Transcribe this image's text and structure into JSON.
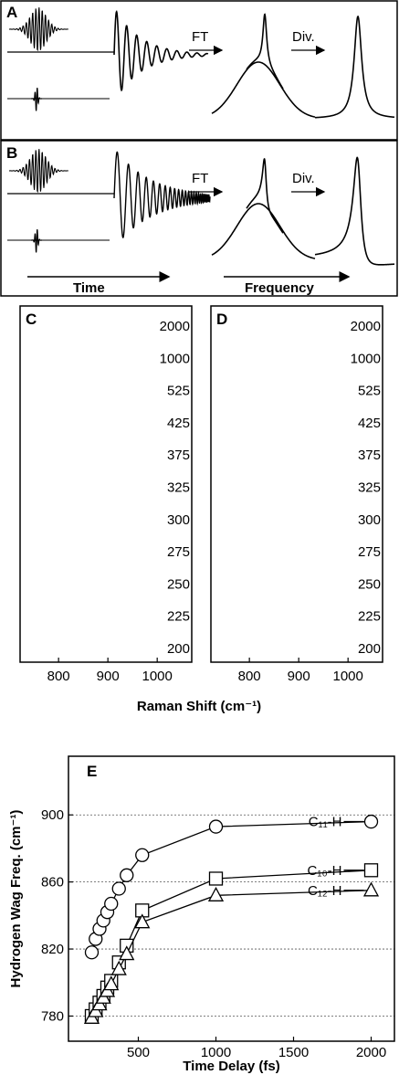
{
  "panels": {
    "A": {
      "label": "A",
      "ft": "FT",
      "div": "Div."
    },
    "B": {
      "label": "B",
      "ft": "FT",
      "div": "Div.",
      "time": "Time",
      "frequency": "Frequency"
    }
  },
  "chart_data": [
    {
      "type": "spectra",
      "panel_label": "C",
      "noisy": true,
      "categories": [
        "2000",
        "1000",
        "525",
        "425",
        "375",
        "325",
        "300",
        "275",
        "250",
        "225",
        "200"
      ],
      "xlim": [
        722,
        1070
      ],
      "xticks": [
        800,
        900,
        1000
      ],
      "xlabel": "Raman Shift (cm⁻¹)"
    },
    {
      "type": "spectra",
      "panel_label": "D",
      "noisy": false,
      "categories": [
        "2000",
        "1000",
        "525",
        "425",
        "375",
        "325",
        "300",
        "275",
        "250",
        "225",
        "200"
      ],
      "xlim": [
        722,
        1070
      ],
      "xticks": [
        800,
        900,
        1000
      ]
    },
    {
      "type": "scatter",
      "panel_label": "E",
      "x": [
        200,
        225,
        250,
        275,
        300,
        325,
        375,
        425,
        525,
        1000,
        2000
      ],
      "series": [
        {
          "name": "C₁₁-H",
          "marker": "circle",
          "color": "#000",
          "values": [
            818,
            826,
            832,
            837,
            842,
            847,
            856,
            864,
            876,
            893,
            896
          ]
        },
        {
          "name": "C₁₀-H",
          "marker": "square",
          "color": "#000",
          "values": [
            780,
            784,
            788,
            792,
            797,
            801,
            812,
            822,
            843,
            862,
            867
          ]
        },
        {
          "name": "C₁₂-H",
          "marker": "triangle",
          "color": "#000",
          "values": [
            779,
            783,
            787,
            791,
            795,
            799,
            808,
            817,
            836,
            852,
            855
          ]
        }
      ],
      "xlim": [
        50,
        2150
      ],
      "ylim": [
        765,
        935
      ],
      "xticks": [
        500,
        1000,
        1500,
        2000
      ],
      "yticks": [
        780,
        820,
        860,
        900
      ],
      "xlabel": "Time Delay (fs)",
      "ylabel": "Hydrogen Wag Freq. (cm⁻¹)",
      "grid": true
    }
  ]
}
